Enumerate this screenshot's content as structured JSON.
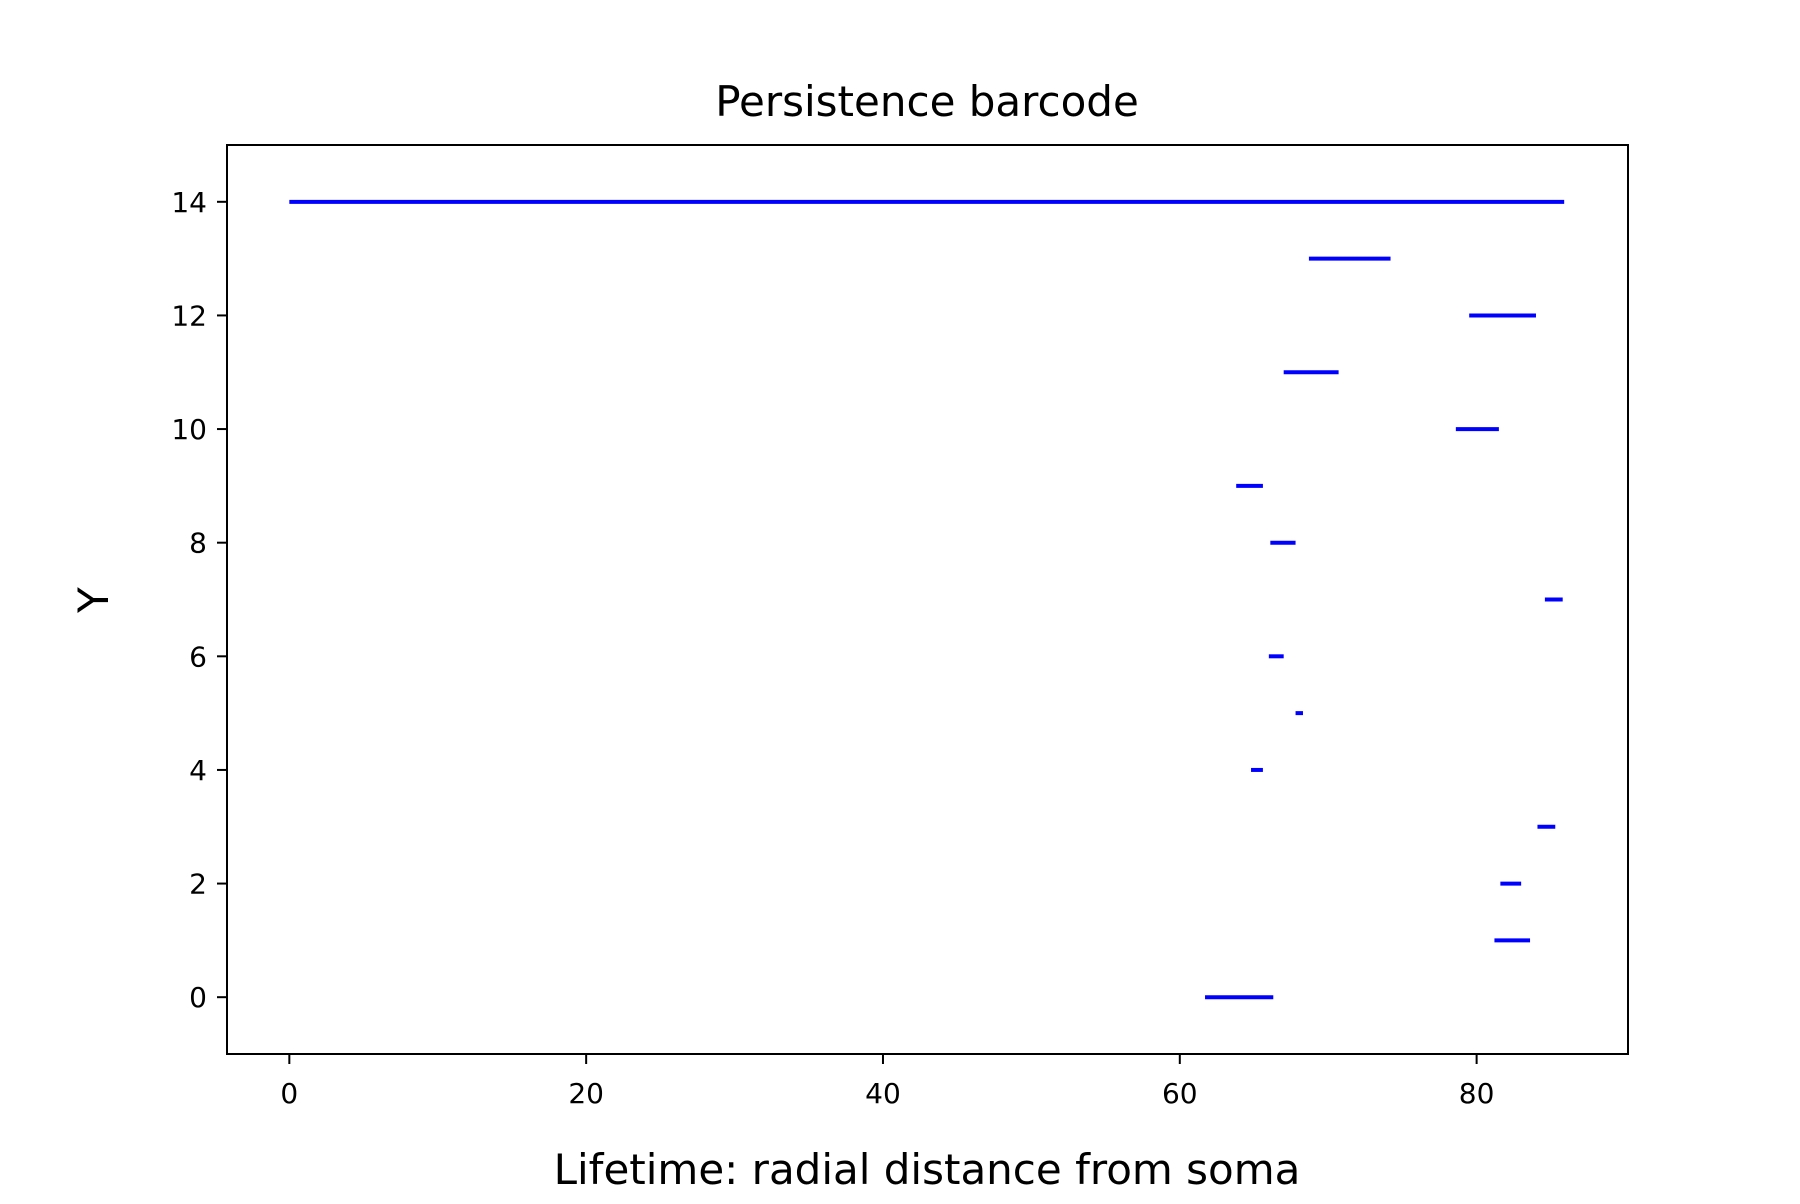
{
  "chart_data": {
    "type": "barcode",
    "title": "Persistence barcode",
    "xlabel": "Lifetime: radial distance from soma",
    "ylabel": "Y",
    "xlim": [
      -4.2,
      90.2
    ],
    "ylim": [
      -1,
      15
    ],
    "xticks": [
      0,
      20,
      40,
      60,
      80
    ],
    "yticks": [
      0,
      2,
      4,
      6,
      8,
      10,
      12,
      14
    ],
    "grid": false,
    "color": "#0000ff",
    "bars": [
      {
        "y": 0,
        "start": 61.7,
        "end": 66.3
      },
      {
        "y": 1,
        "start": 81.2,
        "end": 83.6
      },
      {
        "y": 2,
        "start": 81.6,
        "end": 83.0
      },
      {
        "y": 3,
        "start": 84.1,
        "end": 85.3
      },
      {
        "y": 4,
        "start": 64.8,
        "end": 65.6
      },
      {
        "y": 5,
        "start": 67.8,
        "end": 68.3
      },
      {
        "y": 6,
        "start": 66.0,
        "end": 67.0
      },
      {
        "y": 7,
        "start": 84.6,
        "end": 85.8
      },
      {
        "y": 8,
        "start": 66.1,
        "end": 67.8
      },
      {
        "y": 9,
        "start": 63.8,
        "end": 65.6
      },
      {
        "y": 10,
        "start": 78.6,
        "end": 81.5
      },
      {
        "y": 11,
        "start": 67.0,
        "end": 70.7
      },
      {
        "y": 12,
        "start": 79.5,
        "end": 84.0
      },
      {
        "y": 13,
        "start": 68.7,
        "end": 74.2
      },
      {
        "y": 14,
        "start": 0.0,
        "end": 85.9
      }
    ]
  }
}
